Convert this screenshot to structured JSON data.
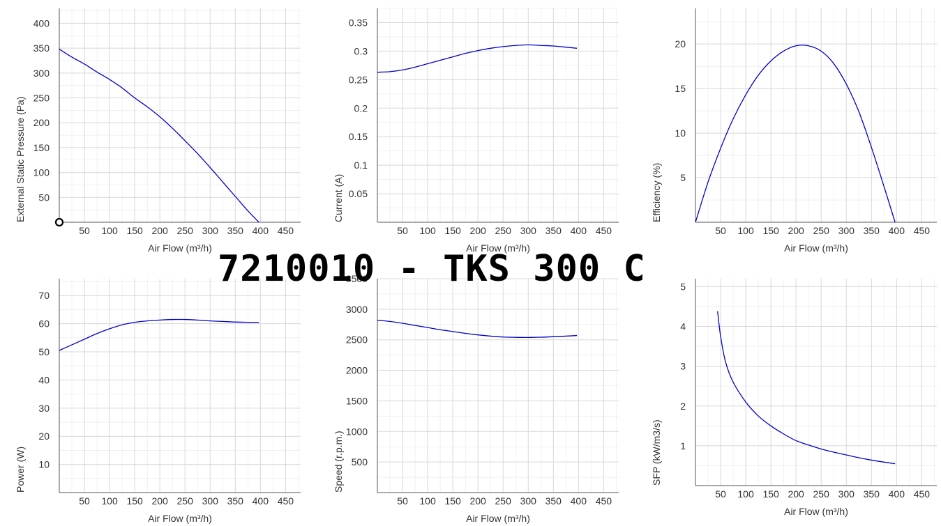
{
  "title": "7210010 - TKS 300 C",
  "colors": {
    "curve": "#0000cc",
    "grid": "#d8d8d8",
    "axis": "#555555",
    "text": "#333333"
  },
  "chart_data": [
    {
      "type": "line",
      "title": "",
      "xlabel": "Air Flow (m³/h)",
      "ylabel": "External Static Pressure (Pa)",
      "xlim": [
        0,
        480
      ],
      "ylim": [
        0,
        430
      ],
      "x_ticks": [
        50,
        100,
        150,
        200,
        250,
        300,
        350,
        400,
        450
      ],
      "y_ticks": [
        50,
        100,
        150,
        200,
        250,
        300,
        350,
        400
      ],
      "grid": true,
      "marker_point": {
        "x": 0,
        "y": 0
      },
      "series": [
        {
          "x": [
            0,
            25,
            50,
            75,
            100,
            125,
            150,
            175,
            200,
            225,
            250,
            275,
            300,
            325,
            350,
            375,
            397
          ],
          "values": [
            348,
            332,
            318,
            302,
            287,
            270,
            250,
            232,
            212,
            189,
            164,
            138,
            110,
            81,
            52,
            23,
            0
          ]
        }
      ]
    },
    {
      "type": "line",
      "title": "",
      "xlabel": "Air Flow (m³/h)",
      "ylabel": "Current (A)",
      "xlim": [
        0,
        480
      ],
      "ylim": [
        0,
        0.375
      ],
      "x_ticks": [
        50,
        100,
        150,
        200,
        250,
        300,
        350,
        400,
        450
      ],
      "y_ticks": [
        0.05,
        0.1,
        0.15,
        0.2,
        0.25,
        0.3,
        0.35
      ],
      "y_tick_labels": [
        "0.05",
        "0.1",
        "0.15",
        "0.2",
        "0.25",
        "0.3",
        "0.35"
      ],
      "grid": true,
      "series": [
        {
          "x": [
            0,
            25,
            50,
            75,
            100,
            125,
            150,
            175,
            200,
            225,
            250,
            275,
            300,
            325,
            350,
            375,
            397
          ],
          "values": [
            0.263,
            0.264,
            0.267,
            0.272,
            0.278,
            0.284,
            0.29,
            0.296,
            0.301,
            0.305,
            0.308,
            0.31,
            0.311,
            0.31,
            0.309,
            0.307,
            0.305
          ]
        }
      ]
    },
    {
      "type": "line",
      "title": "",
      "xlabel": "Air Flow (m³/h)",
      "ylabel": "Efficiency (%)",
      "xlim": [
        0,
        480
      ],
      "ylim": [
        0,
        24
      ],
      "x_ticks": [
        50,
        100,
        150,
        200,
        250,
        300,
        350,
        400,
        450
      ],
      "y_ticks": [
        5,
        10,
        15,
        20
      ],
      "grid": true,
      "series": [
        {
          "x": [
            0,
            25,
            50,
            75,
            100,
            125,
            150,
            175,
            200,
            225,
            250,
            275,
            300,
            325,
            350,
            375,
            397
          ],
          "values": [
            0,
            4.5,
            8.3,
            11.6,
            14.3,
            16.5,
            18.1,
            19.2,
            19.8,
            19.8,
            19.2,
            17.8,
            15.5,
            12.4,
            8.4,
            4.0,
            0
          ]
        }
      ]
    },
    {
      "type": "line",
      "title": "",
      "xlabel": "Air Flow (m³/h)",
      "ylabel": "Power (W)",
      "xlim": [
        0,
        480
      ],
      "ylim": [
        0,
        76
      ],
      "x_ticks": [
        50,
        100,
        150,
        200,
        250,
        300,
        350,
        400,
        450
      ],
      "y_ticks": [
        10,
        20,
        30,
        40,
        50,
        60,
        70
      ],
      "grid": true,
      "series": [
        {
          "x": [
            0,
            25,
            50,
            75,
            100,
            125,
            150,
            175,
            200,
            225,
            250,
            275,
            300,
            325,
            350,
            375,
            397
          ],
          "values": [
            50.5,
            52.5,
            54.5,
            56.5,
            58.2,
            59.6,
            60.5,
            61.0,
            61.3,
            61.5,
            61.5,
            61.3,
            61.0,
            60.8,
            60.6,
            60.5,
            60.5
          ]
        }
      ]
    },
    {
      "type": "line",
      "title": "",
      "xlabel": "Air Flow (m³/h)",
      "ylabel": "Speed (r.p.m.)",
      "xlim": [
        0,
        480
      ],
      "ylim": [
        0,
        3500
      ],
      "x_ticks": [
        50,
        100,
        150,
        200,
        250,
        300,
        350,
        400,
        450
      ],
      "y_ticks": [
        500,
        1000,
        1500,
        2000,
        2500,
        3000,
        3500
      ],
      "grid": true,
      "series": [
        {
          "x": [
            0,
            25,
            50,
            75,
            100,
            125,
            150,
            175,
            200,
            225,
            250,
            275,
            300,
            325,
            350,
            375,
            397
          ],
          "values": [
            2820,
            2800,
            2770,
            2735,
            2700,
            2665,
            2635,
            2605,
            2580,
            2560,
            2545,
            2540,
            2538,
            2542,
            2550,
            2560,
            2570
          ]
        }
      ]
    },
    {
      "type": "line",
      "title": "",
      "xlabel": "Air Flow (m³/h)",
      "ylabel": "SFP (kW/m3/s)",
      "xlim": [
        0,
        480
      ],
      "ylim": [
        0,
        5.2
      ],
      "x_ticks": [
        50,
        100,
        150,
        200,
        250,
        300,
        350,
        400,
        450
      ],
      "y_ticks": [
        1,
        2,
        3,
        4,
        5
      ],
      "grid": true,
      "series": [
        {
          "x": [
            44,
            50,
            60,
            75,
            100,
            125,
            150,
            175,
            200,
            225,
            250,
            275,
            300,
            325,
            350,
            375,
            397
          ],
          "values": [
            4.38,
            3.75,
            3.1,
            2.6,
            2.1,
            1.75,
            1.5,
            1.3,
            1.13,
            1.02,
            0.92,
            0.84,
            0.77,
            0.7,
            0.64,
            0.59,
            0.55
          ]
        }
      ]
    }
  ]
}
